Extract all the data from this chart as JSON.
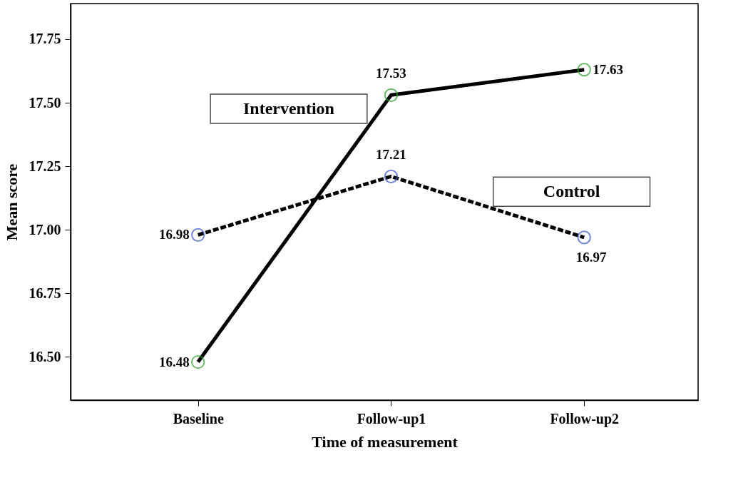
{
  "chart_data": {
    "type": "line",
    "xlabel": "Time of measurement",
    "ylabel": "Mean score",
    "categories": [
      "Baseline",
      "Follow-up1",
      "Follow-up2"
    ],
    "series": [
      {
        "name": "Intervention",
        "color": "#2ca02c",
        "line_style": "solid",
        "values": [
          16.48,
          17.53,
          17.63
        ]
      },
      {
        "name": "Control",
        "color": "#3a55c8",
        "line_style": "dashed",
        "values": [
          16.98,
          17.21,
          16.97
        ]
      }
    ],
    "ylim": [
      16.33,
      17.89
    ],
    "yticks": [
      {
        "value": 16.5,
        "label": "16.50"
      },
      {
        "value": 16.75,
        "label": "16.75"
      },
      {
        "value": 17.0,
        "label": "17.00"
      },
      {
        "value": 17.25,
        "label": "17.25"
      },
      {
        "value": 17.5,
        "label": "17.50"
      },
      {
        "value": 17.75,
        "label": "17.75"
      }
    ],
    "marker": "circle",
    "data_labels": true,
    "grid": false
  }
}
